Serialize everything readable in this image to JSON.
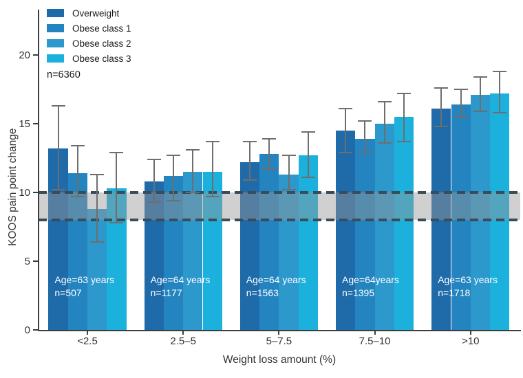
{
  "chart_data": {
    "type": "bar",
    "title": "",
    "xlabel": "Weight loss amount (%)",
    "ylabel": "KOOS pain point change",
    "ylim": [
      0,
      22
    ],
    "yticks": [
      0,
      5,
      10,
      15,
      20
    ],
    "grid": false,
    "legend_position": "top-left-inside",
    "total_label": "n=6360",
    "categories": [
      "<2.5",
      "2.5–5",
      "5–7.5",
      "7.5–10",
      ">10"
    ],
    "series": [
      {
        "name": "Overweight",
        "color": "#1f6ba9",
        "values": [
          13.2,
          10.8,
          12.2,
          14.5,
          16.1
        ],
        "ci_low": [
          10.2,
          9.3,
          10.9,
          12.9,
          14.8
        ],
        "ci_high": [
          16.3,
          12.4,
          13.7,
          16.1,
          17.6
        ]
      },
      {
        "name": "Obese class 1",
        "color": "#2384c0",
        "values": [
          11.4,
          11.2,
          12.8,
          13.9,
          16.4
        ],
        "ci_low": [
          9.7,
          9.4,
          11.7,
          12.9,
          15.5
        ],
        "ci_high": [
          13.4,
          12.7,
          13.9,
          15.2,
          17.5
        ]
      },
      {
        "name": "Obese class 2",
        "color": "#2d98cc",
        "values": [
          8.8,
          11.5,
          11.3,
          15.0,
          17.1
        ],
        "ci_low": [
          6.4,
          10.0,
          10.2,
          13.6,
          15.9
        ],
        "ci_high": [
          11.3,
          13.1,
          12.7,
          16.6,
          18.4
        ]
      },
      {
        "name": "Obese class 3",
        "color": "#1cb0dd",
        "values": [
          10.3,
          11.5,
          12.7,
          15.5,
          17.2
        ],
        "ci_low": [
          7.8,
          9.7,
          11.1,
          13.7,
          15.8
        ],
        "ci_high": [
          12.9,
          13.7,
          14.4,
          17.2,
          18.8
        ]
      }
    ],
    "reference_band": {
      "from": 8,
      "to": 10,
      "fill": "rgba(150,150,150,0.45)",
      "line_color": "#3a4c57"
    },
    "group_annotations": [
      {
        "lines": [
          "Age=63 years",
          "n=507"
        ]
      },
      {
        "lines": [
          "Age=64 years",
          "n=1177"
        ]
      },
      {
        "lines": [
          "Age=64 years",
          "n=1563"
        ]
      },
      {
        "lines": [
          "Age=64years",
          "n=1395"
        ]
      },
      {
        "lines": [
          "Age=63 years",
          "n=1718"
        ]
      }
    ]
  }
}
